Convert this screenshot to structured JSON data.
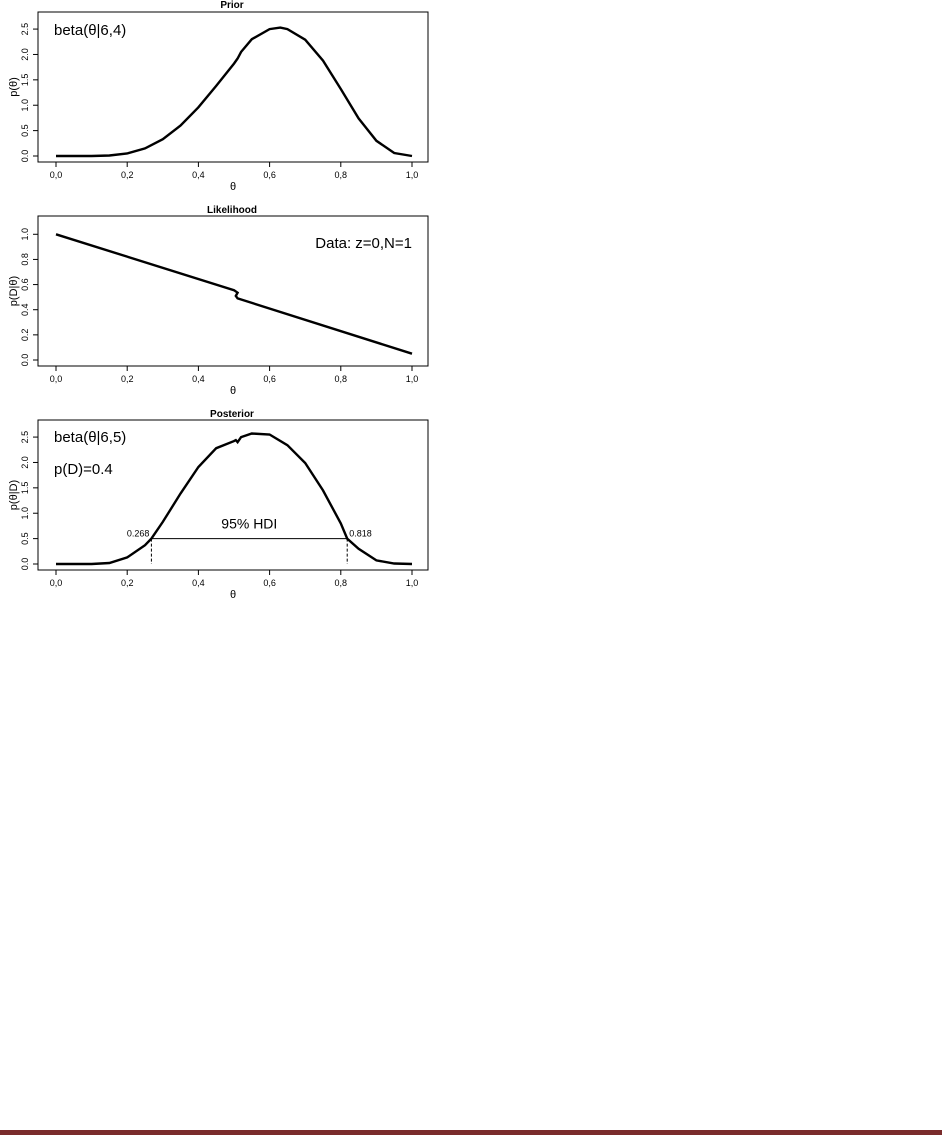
{
  "footer": {
    "rule_color": "#7a2c2c"
  },
  "chart_data": [
    {
      "type": "line",
      "title": "Prior",
      "xlabel": "θ",
      "ylabel": "p(θ)",
      "xlim": [
        0,
        1
      ],
      "ylim": [
        0,
        2.6
      ],
      "x_ticks": [
        "0,0",
        "0,2",
        "0,4",
        "0,6",
        "0,8",
        "1,0"
      ],
      "y_ticks": [
        "0.0",
        "0.5",
        "1.0",
        "1.5",
        "2.0",
        "2.5"
      ],
      "annotations": [
        "beta(θ|6,4)"
      ],
      "series": [
        {
          "x": [
            0.0,
            0.1,
            0.15,
            0.2,
            0.25,
            0.3,
            0.35,
            0.4,
            0.45,
            0.5,
            0.51,
            0.52,
            0.55,
            0.6,
            0.63,
            0.65,
            0.7,
            0.75,
            0.8,
            0.85,
            0.9,
            0.95,
            1.0
          ],
          "y": [
            0.0,
            0.0,
            0.01,
            0.05,
            0.15,
            0.33,
            0.6,
            0.96,
            1.38,
            1.82,
            1.92,
            2.05,
            2.3,
            2.5,
            2.53,
            2.5,
            2.29,
            1.88,
            1.32,
            0.74,
            0.3,
            0.06,
            0.0
          ]
        }
      ]
    },
    {
      "type": "line",
      "title": "Likelihood",
      "xlabel": "θ",
      "ylabel": "p(D|θ)",
      "xlim": [
        0,
        1
      ],
      "ylim": [
        0,
        1.05
      ],
      "x_ticks": [
        "0,0",
        "0,2",
        "0,4",
        "0,6",
        "0,8",
        "1,0"
      ],
      "y_ticks": [
        "0.0",
        "0.2",
        "0.4",
        "0.6",
        "0.8",
        "1.0"
      ],
      "annotations": [
        "Data: z=0,N=1"
      ],
      "series": [
        {
          "x": [
            0.0,
            0.5,
            0.51,
            0.505,
            0.51,
            1.0
          ],
          "y": [
            1.0,
            0.555,
            0.535,
            0.51,
            0.49,
            0.05
          ]
        }
      ]
    },
    {
      "type": "line",
      "title": "Posterior",
      "xlabel": "θ",
      "ylabel": "p(θ|D)",
      "xlim": [
        0,
        1
      ],
      "ylim": [
        0,
        2.6
      ],
      "x_ticks": [
        "0,0",
        "0,2",
        "0,4",
        "0,6",
        "0,8",
        "1,0"
      ],
      "y_ticks": [
        "0.0",
        "0.5",
        "1.0",
        "1.5",
        "2.0",
        "2.5"
      ],
      "annotations": [
        "beta(θ|6,5)",
        "p(D)=0.4"
      ],
      "hdi": {
        "label": "95% HDI",
        "low": 0.268,
        "high": 0.818,
        "level": 0.5,
        "low_label": "0.268",
        "high_label": "0.818"
      },
      "series": [
        {
          "x": [
            0.0,
            0.1,
            0.15,
            0.2,
            0.25,
            0.268,
            0.3,
            0.35,
            0.4,
            0.45,
            0.5,
            0.505,
            0.51,
            0.52,
            0.55,
            0.6,
            0.65,
            0.7,
            0.75,
            0.8,
            0.818,
            0.85,
            0.9,
            0.95,
            1.0
          ],
          "y": [
            0.0,
            0.0,
            0.02,
            0.13,
            0.37,
            0.5,
            0.83,
            1.39,
            1.91,
            2.28,
            2.42,
            2.44,
            2.4,
            2.5,
            2.57,
            2.55,
            2.34,
            1.99,
            1.45,
            0.8,
            0.5,
            0.3,
            0.07,
            0.01,
            0.0
          ]
        }
      ]
    }
  ]
}
